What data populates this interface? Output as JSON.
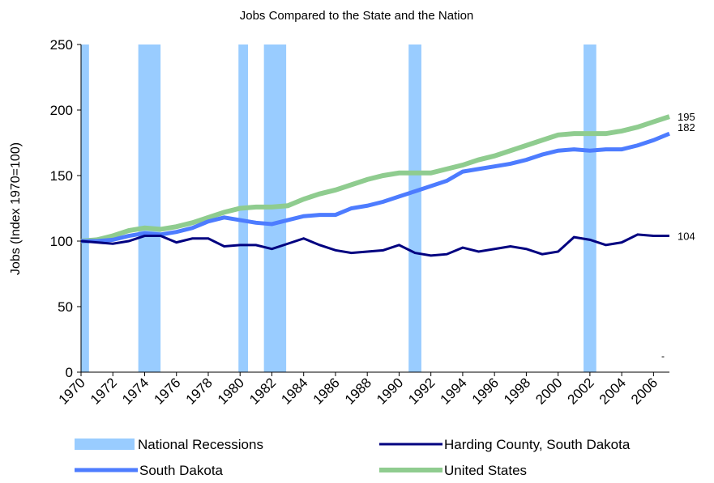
{
  "chart_data": {
    "type": "line",
    "title": "Jobs Compared to the State and the Nation",
    "y_label": "Jobs (Index 1970=100)",
    "x": [
      1970,
      1971,
      1972,
      1973,
      1974,
      1975,
      1976,
      1977,
      1978,
      1979,
      1980,
      1981,
      1982,
      1983,
      1984,
      1985,
      1986,
      1987,
      1988,
      1989,
      1990,
      1991,
      1992,
      1993,
      1994,
      1995,
      1996,
      1997,
      1998,
      1999,
      2000,
      2001,
      2002,
      2003,
      2004,
      2005,
      2006,
      2007
    ],
    "xlim": [
      1970,
      2007
    ],
    "xticks": [
      1970,
      1972,
      1974,
      1976,
      1978,
      1980,
      1982,
      1984,
      1986,
      1988,
      1990,
      1992,
      1994,
      1996,
      1998,
      2000,
      2002,
      2004,
      2006
    ],
    "ylim": [
      0,
      250
    ],
    "yticks": [
      0,
      50,
      100,
      150,
      200,
      250
    ],
    "recessions": {
      "name": "National Recessions",
      "color": "#99ccff",
      "periods": [
        [
          1970.0,
          1970.5
        ],
        [
          1973.6,
          1975.0
        ],
        [
          1979.9,
          1980.5
        ],
        [
          1981.5,
          1982.9
        ],
        [
          1990.6,
          1991.4
        ],
        [
          2001.6,
          2002.4
        ]
      ]
    },
    "series": [
      {
        "name": "Harding County, South Dakota",
        "color": "#000080",
        "width": 3,
        "values": [
          100,
          99,
          98,
          100,
          104,
          104,
          99,
          102,
          102,
          96,
          97,
          97,
          94,
          98,
          102,
          97,
          93,
          91,
          92,
          93,
          97,
          91,
          89,
          90,
          95,
          92,
          94,
          96,
          94,
          90,
          92,
          103,
          101,
          97,
          99,
          105,
          104,
          104
        ]
      },
      {
        "name": "South Dakota",
        "color": "#4d7cff",
        "width": 5,
        "values": [
          100,
          100,
          101,
          104,
          106,
          105,
          107,
          110,
          115,
          118,
          116,
          114,
          113,
          116,
          119,
          120,
          120,
          125,
          127,
          130,
          134,
          138,
          142,
          146,
          153,
          155,
          157,
          159,
          162,
          166,
          169,
          170,
          169,
          170,
          170,
          173,
          177,
          182
        ]
      },
      {
        "name": "United States",
        "color": "#8fcc8f",
        "width": 6,
        "values": [
          100,
          101,
          104,
          108,
          110,
          109,
          111,
          114,
          118,
          122,
          125,
          126,
          126,
          127,
          132,
          136,
          139,
          143,
          147,
          150,
          152,
          152,
          152,
          155,
          158,
          162,
          165,
          169,
          173,
          177,
          181,
          182,
          182,
          182,
          184,
          187,
          191,
          195
        ]
      }
    ],
    "annotations": [
      "-"
    ]
  }
}
